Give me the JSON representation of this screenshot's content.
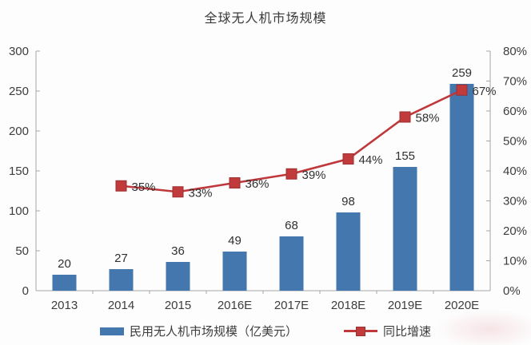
{
  "title": "全球无人机市场规模",
  "colors": {
    "bar": "#4377ad",
    "line": "#bf393c",
    "marker_fill": "#c13b3d",
    "marker_border": "#9c2f31",
    "axis": "#a6a6a6",
    "tick_text": "#3d3d3d",
    "value_text": "#303030",
    "title_text": "#3a3a3a"
  },
  "chart_data": {
    "type": "bar",
    "subtype": "bar-line-combo",
    "title": "全球无人机市场规模",
    "categories": [
      "2013",
      "2014",
      "2015",
      "2016E",
      "2017E",
      "2018E",
      "2019E",
      "2020E"
    ],
    "series": [
      {
        "name": "民用无人机市场规模（亿美元）",
        "type": "bar",
        "axis": "left",
        "values": [
          20,
          27,
          36,
          49,
          68,
          98,
          155,
          259
        ],
        "labels": [
          "20",
          "27",
          "36",
          "49",
          "68",
          "98",
          "155",
          "259"
        ]
      },
      {
        "name": "同比增速",
        "type": "line",
        "axis": "right",
        "values": [
          null,
          35,
          33,
          36,
          39,
          44,
          58,
          67
        ],
        "labels": [
          "",
          "35%",
          "33%",
          "36%",
          "39%",
          "44%",
          "58%",
          "67%"
        ]
      }
    ],
    "left_axis": {
      "min": 0,
      "max": 300,
      "ticks": [
        0,
        50,
        100,
        150,
        200,
        250,
        300
      ],
      "tick_labels": [
        "0",
        "50",
        "100",
        "150",
        "200",
        "250",
        "300"
      ]
    },
    "right_axis": {
      "min": 0,
      "max": 80,
      "ticks": [
        0,
        10,
        20,
        30,
        40,
        50,
        60,
        70,
        80
      ],
      "tick_labels": [
        "0%",
        "10%",
        "20%",
        "30%",
        "40%",
        "50%",
        "60%",
        "70%",
        "80%"
      ]
    },
    "grid": false,
    "legend": {
      "position": "bottom",
      "items": [
        {
          "label": "民用无人机市场规模（亿美元）",
          "series": "bar"
        },
        {
          "label": "同比增速",
          "series": "line"
        }
      ]
    }
  }
}
